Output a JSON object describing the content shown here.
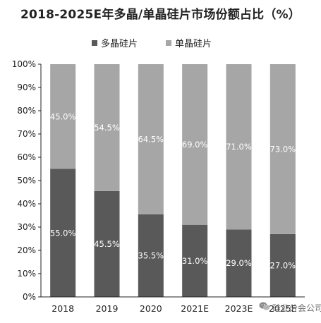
{
  "chart_data": {
    "type": "bar",
    "stacked": true,
    "title": "2018-2025E年多晶/单晶硅片市场份额占比（%）",
    "categories": [
      "2018",
      "2019",
      "2020",
      "2021E",
      "2023E",
      "2025E"
    ],
    "series": [
      {
        "name": "多晶硅片",
        "color": "#595959",
        "values": [
          55.0,
          45.5,
          35.5,
          31.0,
          29.0,
          27.0
        ],
        "labels": [
          "55.0%",
          "45.5%",
          "35.5%",
          "31.0%",
          "29.0%",
          "27.0%"
        ]
      },
      {
        "name": "单晶硅片",
        "color": "#a6a6a6",
        "values": [
          45.0,
          54.5,
          64.5,
          69.0,
          71.0,
          73.0
        ],
        "labels": [
          "45.0%",
          "54.5%",
          "64.5%",
          "69.0%",
          "71.0%",
          "73.0%"
        ]
      }
    ],
    "ylim": [
      0,
      100
    ],
    "yticks": [
      "0%",
      "10%",
      "20%",
      "30%",
      "40%",
      "50%",
      "60%",
      "70%",
      "80%",
      "90%",
      "100%"
    ],
    "legend_position": "top",
    "grid": false
  },
  "watermark": {
    "text": "硅业分会公司"
  }
}
